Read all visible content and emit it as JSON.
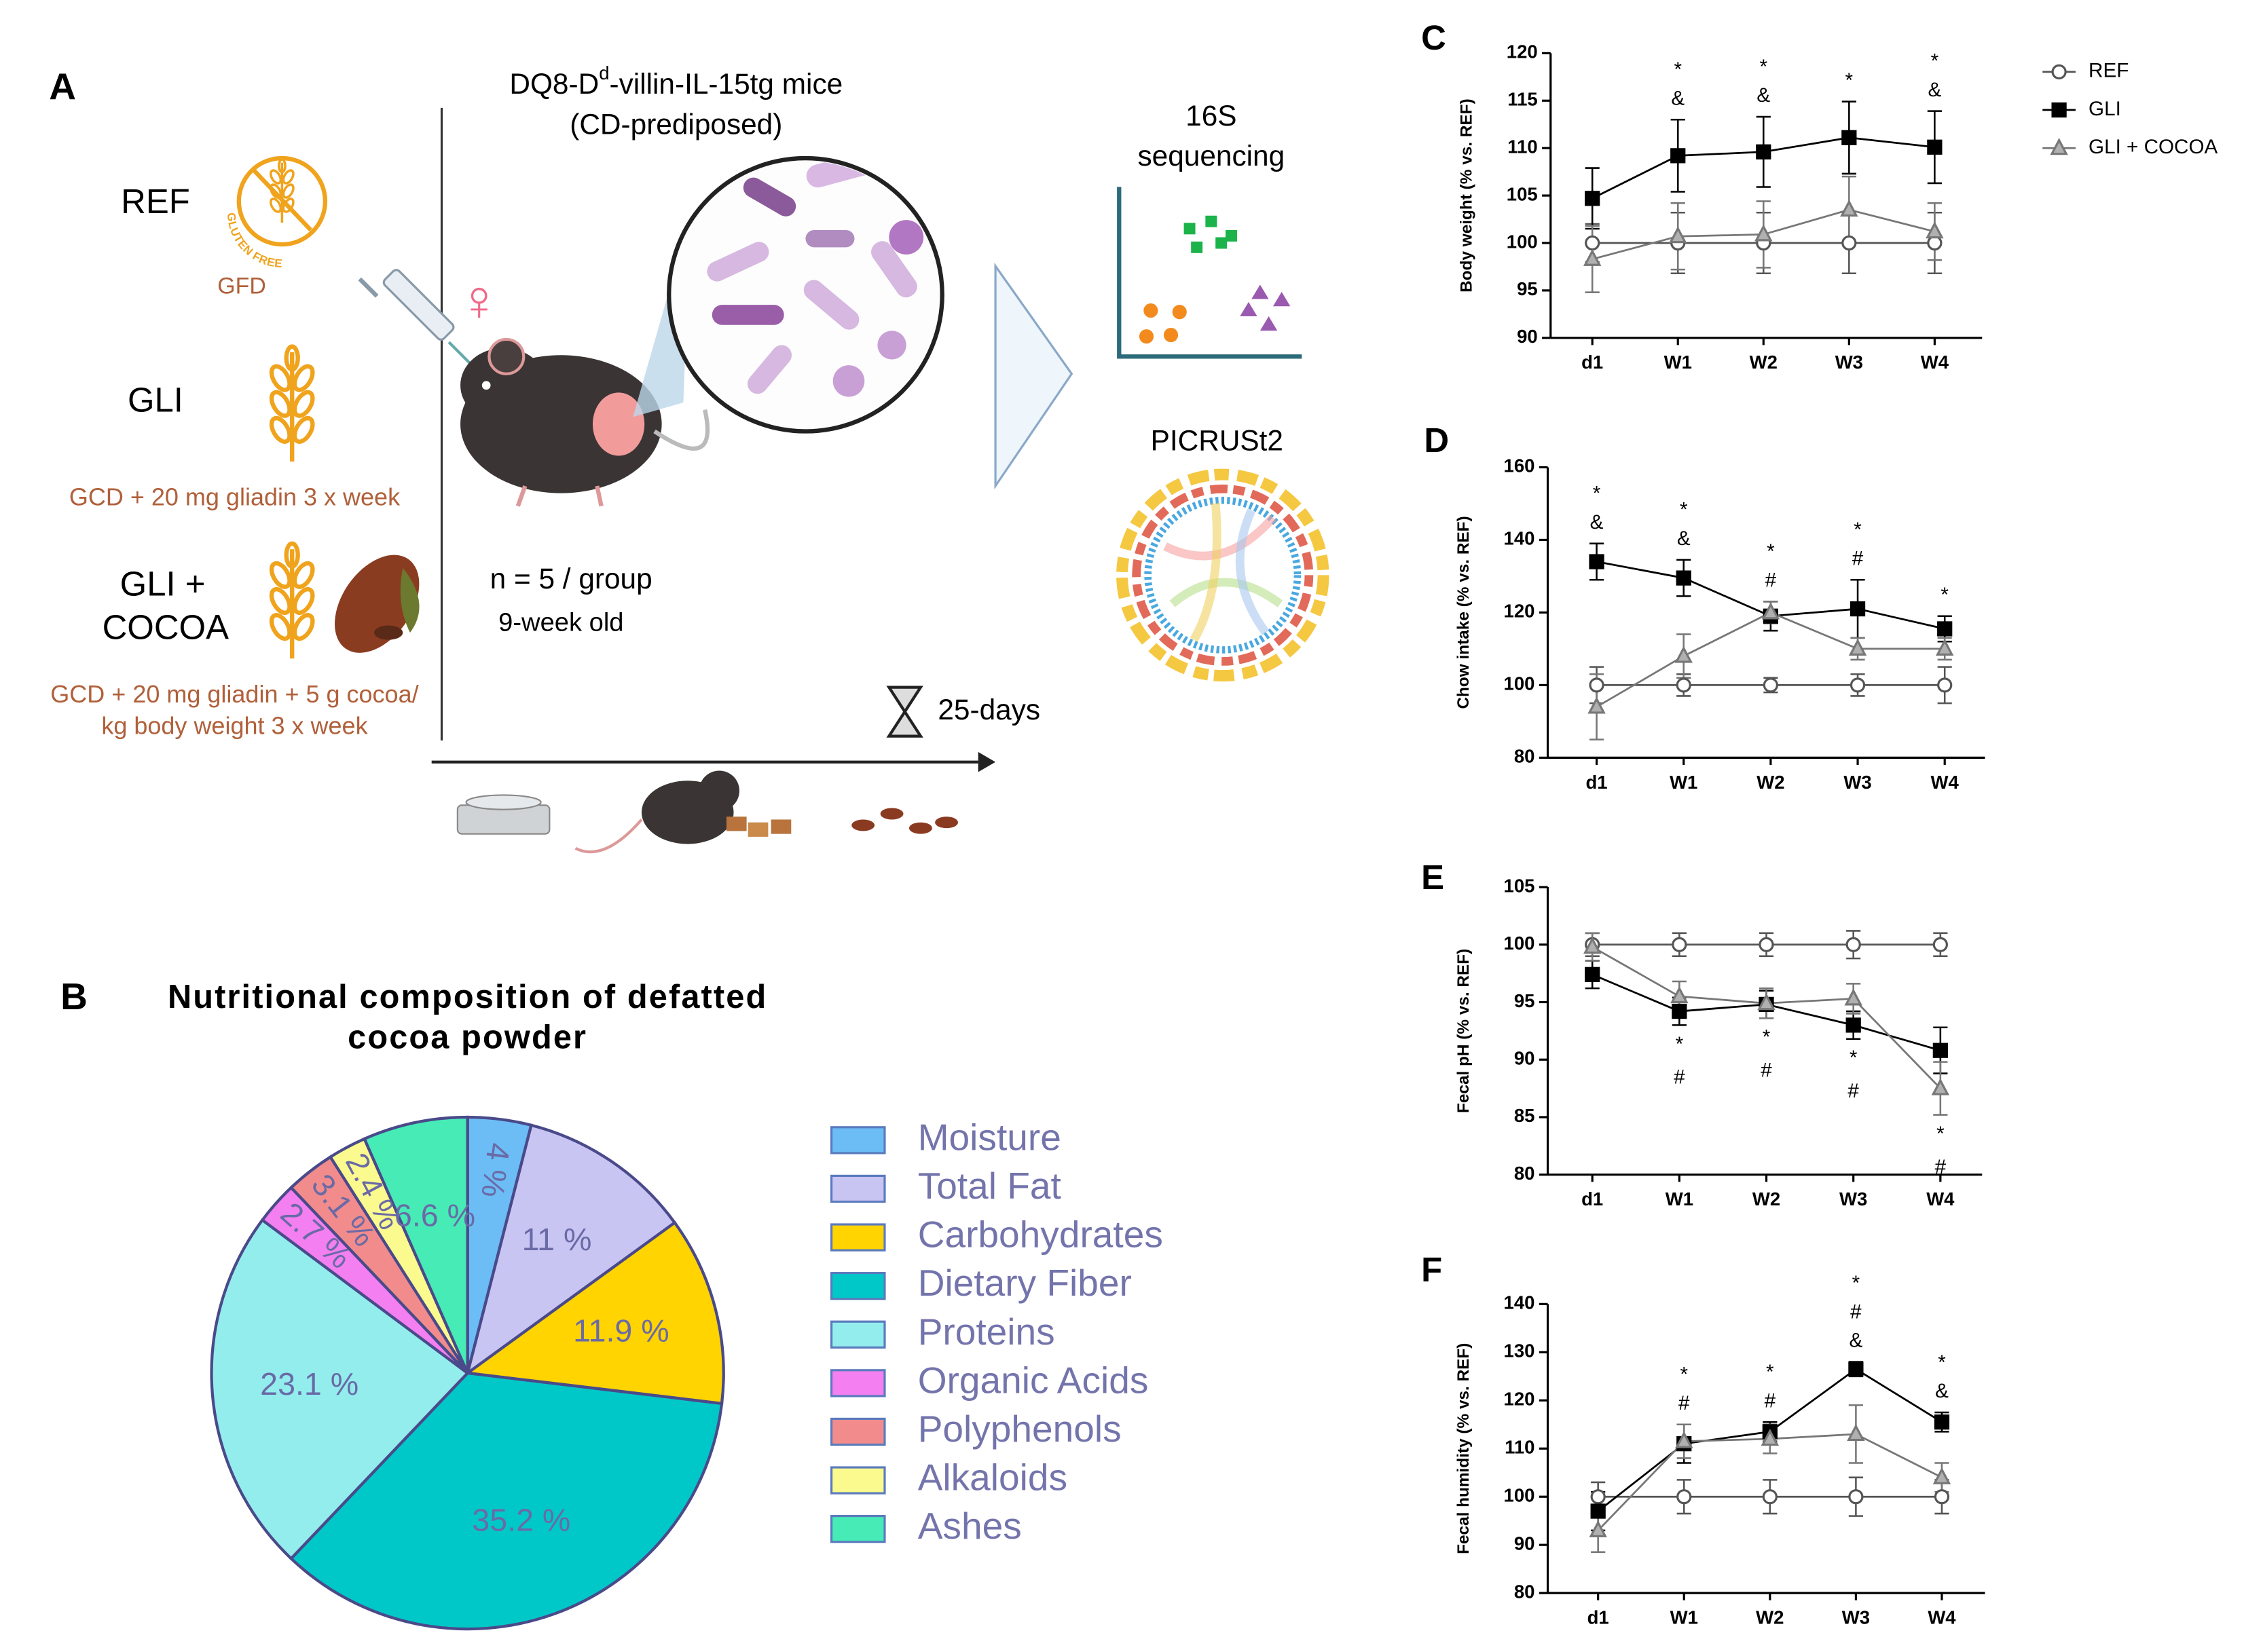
{
  "panel_a": {
    "label": "A",
    "ref": {
      "name": "REF",
      "icon_text": "GLUTEN FREE",
      "diet": "GFD"
    },
    "gli": {
      "name": "GLI",
      "diet": "GCD + 20 mg gliadin 3 x week"
    },
    "cocoa": {
      "name": [
        "GLI +",
        "COCOA"
      ],
      "diet": [
        "GCD + 20 mg gliadin + 5 g cocoa/",
        "kg body weight 3 x week"
      ]
    },
    "mice": {
      "title": [
        "DQ8-D",
        "d",
        "-villin-IL-15tg mice"
      ],
      "subtitle": "(CD-prediposed)",
      "n": "n = 5 / group",
      "age": "9-week old"
    },
    "duration": "25-days",
    "outputs": [
      [
        "16S",
        "sequencing"
      ],
      [
        "PICRUSt2"
      ]
    ]
  },
  "chart_data": [
    {
      "type": "pie",
      "label": "B",
      "title": [
        "Nutritional composition of defatted",
        "cocoa powder"
      ],
      "categories": [
        "Moisture",
        "Total Fat",
        "Carbohydrates",
        "Dietary Fiber",
        "Proteins",
        "Organic Acids",
        "Polyphenols",
        "Alkaloids",
        "Ashes"
      ],
      "values": [
        4,
        11,
        11.9,
        35.2,
        23.1,
        2.7,
        3.1,
        2.4,
        6.6
      ],
      "value_labels": [
        "4 %",
        "11 %",
        "11.9 %",
        "35.2 %",
        "23.1 %",
        "2.7 %",
        "3.1 %",
        "2.4 %",
        "6.6 %"
      ],
      "colors": [
        "#6cbcf6",
        "#c9c5f3",
        "#ffd400",
        "#00c8c8",
        "#93eded",
        "#f47ff0",
        "#f28c8c",
        "#fafa8e",
        "#46ebb6"
      ],
      "legend": "right"
    },
    {
      "type": "line",
      "label": "C",
      "ylabel": "Body weight (% vs. REF)",
      "categories": [
        "d1",
        "W1",
        "W2",
        "W3",
        "W4"
      ],
      "ylim": [
        90,
        120
      ],
      "yticks": [
        90,
        95,
        100,
        105,
        110,
        115,
        120
      ],
      "legend": "right",
      "annotation_position": "above",
      "series": [
        {
          "name": "REF",
          "color": "#555555",
          "marker": "circle",
          "fill": "#ffffff",
          "values": [
            100,
            100,
            100,
            100,
            100
          ],
          "errors": [
            2,
            3.2,
            3.2,
            3.2,
            3.2
          ]
        },
        {
          "name": "GLI",
          "color": "#000000",
          "marker": "square",
          "fill": "#000000",
          "values": [
            104.7,
            109.2,
            109.6,
            111.1,
            110.1
          ],
          "errors": [
            3.2,
            3.8,
            3.7,
            3.8,
            3.8
          ]
        },
        {
          "name": "GLI + COCOA",
          "color": "#777777",
          "marker": "triangle",
          "fill": "#b0b0b0",
          "values": [
            98.3,
            100.7,
            100.9,
            103.5,
            101.2
          ],
          "errors": [
            3.5,
            3.5,
            3.5,
            3.5,
            3
          ]
        }
      ],
      "annotations": [
        {
          "x": "W1",
          "text": [
            "*",
            "&"
          ]
        },
        {
          "x": "W2",
          "text": [
            "*",
            "&"
          ]
        },
        {
          "x": "W3",
          "text": [
            "*"
          ]
        },
        {
          "x": "W4",
          "text": [
            "*",
            "&"
          ]
        }
      ]
    },
    {
      "type": "line",
      "label": "D",
      "ylabel": "Chow intake (% vs. REF)",
      "categories": [
        "d1",
        "W1",
        "W2",
        "W3",
        "W4"
      ],
      "ylim": [
        80,
        160
      ],
      "yticks": [
        80,
        100,
        120,
        140,
        160
      ],
      "annotation_position": "above",
      "series": [
        {
          "name": "REF",
          "color": "#555555",
          "marker": "circle",
          "fill": "#ffffff",
          "values": [
            100,
            100,
            100,
            100,
            100
          ],
          "errors": [
            5,
            3,
            2,
            3,
            5
          ]
        },
        {
          "name": "GLI",
          "color": "#000000",
          "marker": "square",
          "fill": "#000000",
          "values": [
            134,
            129.5,
            119,
            121,
            115.5
          ],
          "errors": [
            5,
            5,
            4,
            8,
            3.5
          ]
        },
        {
          "name": "GLI + COCOA",
          "color": "#777777",
          "marker": "triangle",
          "fill": "#b0b0b0",
          "values": [
            94,
            108,
            120,
            110,
            110
          ],
          "errors": [
            9,
            6,
            3,
            3,
            3
          ]
        }
      ],
      "annotations": [
        {
          "x": "d1",
          "text": [
            "*",
            "&"
          ]
        },
        {
          "x": "W1",
          "text": [
            "*",
            "&"
          ]
        },
        {
          "x": "W2",
          "text": [
            "*",
            "#"
          ]
        },
        {
          "x": "W3",
          "text": [
            "*",
            "#"
          ]
        },
        {
          "x": "W4",
          "text": [
            "*"
          ]
        }
      ]
    },
    {
      "type": "line",
      "label": "E",
      "ylabel": "Fecal pH (% vs. REF)",
      "categories": [
        "d1",
        "W1",
        "W2",
        "W3",
        "W4"
      ],
      "ylim": [
        80,
        105
      ],
      "yticks": [
        80,
        85,
        90,
        95,
        100,
        105
      ],
      "annotation_position": "below",
      "series": [
        {
          "name": "REF",
          "color": "#555555",
          "marker": "circle",
          "fill": "#ffffff",
          "values": [
            100,
            100,
            100,
            100,
            100
          ],
          "errors": [
            1,
            1,
            1,
            1.2,
            1
          ]
        },
        {
          "name": "GLI",
          "color": "#000000",
          "marker": "square",
          "fill": "#000000",
          "values": [
            97.4,
            94.2,
            94.8,
            93,
            90.8
          ],
          "errors": [
            1.2,
            1.2,
            1.2,
            1.2,
            2
          ]
        },
        {
          "name": "GLI + COCOA",
          "color": "#777777",
          "marker": "triangle",
          "fill": "#b0b0b0",
          "values": [
            99.8,
            95.5,
            94.9,
            95.3,
            87.5
          ],
          "errors": [
            1.2,
            1.3,
            1.3,
            1.3,
            2.3
          ]
        }
      ],
      "annotations": [
        {
          "x": "W1",
          "text": [
            "*",
            "#"
          ]
        },
        {
          "x": "W2",
          "text": [
            "*",
            "#"
          ]
        },
        {
          "x": "W3",
          "text": [
            "*",
            "#"
          ]
        },
        {
          "x": "W4",
          "text": [
            "*",
            "#"
          ]
        }
      ]
    },
    {
      "type": "line",
      "label": "F",
      "ylabel": "Fecal humidity  (% vs. REF)",
      "categories": [
        "d1",
        "W1",
        "W2",
        "W3",
        "W4"
      ],
      "ylim": [
        80,
        140
      ],
      "yticks": [
        80,
        90,
        100,
        110,
        120,
        130,
        140
      ],
      "annotation_position": "above",
      "series": [
        {
          "name": "REF",
          "color": "#555555",
          "marker": "circle",
          "fill": "#ffffff",
          "values": [
            100,
            100,
            100,
            100,
            100
          ],
          "errors": [
            3,
            3.5,
            3.5,
            4,
            3.5
          ]
        },
        {
          "name": "GLI",
          "color": "#000000",
          "marker": "square",
          "fill": "#000000",
          "values": [
            97,
            111,
            113.5,
            126.5,
            115.5
          ],
          "errors": [
            4,
            4,
            2,
            1.5,
            2
          ]
        },
        {
          "name": "GLI + COCOA",
          "color": "#777777",
          "marker": "triangle",
          "fill": "#b0b0b0",
          "values": [
            93,
            111.5,
            112,
            113,
            104
          ],
          "errors": [
            4.5,
            3.5,
            3,
            6,
            3
          ]
        }
      ],
      "annotations": [
        {
          "x": "W1",
          "text": [
            "*",
            "#"
          ]
        },
        {
          "x": "W2",
          "text": [
            "*",
            "#"
          ]
        },
        {
          "x": "W3",
          "text": [
            "*",
            "#",
            "&"
          ]
        },
        {
          "x": "W4",
          "text": [
            "*",
            "&"
          ]
        }
      ]
    }
  ]
}
